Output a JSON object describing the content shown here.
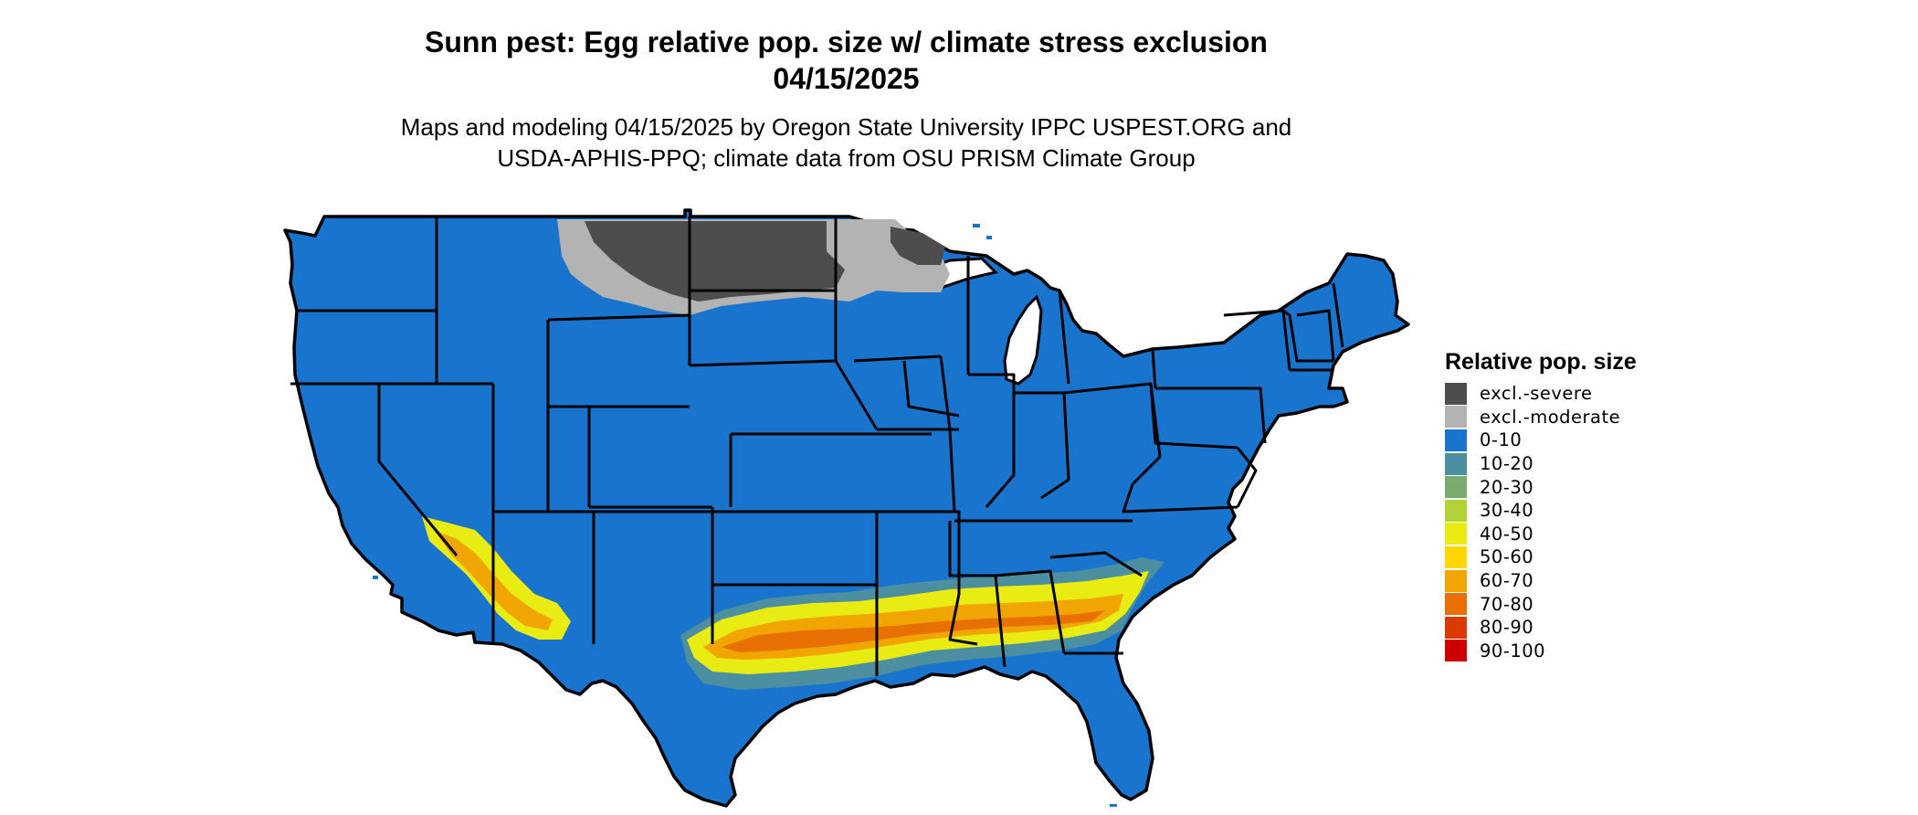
{
  "title": {
    "line1": "Sunn pest: Egg relative pop. size w/ climate stress exclusion",
    "line2": "04/15/2025"
  },
  "subtitle": {
    "line1": "Maps and modeling 04/15/2025 by Oregon State University IPPC USPEST.ORG and",
    "line2": "USDA-APHIS-PPQ; climate data from OSU PRISM Climate Group"
  },
  "legend": {
    "title": "Relative pop. size",
    "items": [
      {
        "label": "excl.-severe",
        "color": "#4d4d4d"
      },
      {
        "label": "excl.-moderate",
        "color": "#b3b3b3"
      },
      {
        "label": "0-10",
        "color": "#1874cd"
      },
      {
        "label": "10-20",
        "color": "#4b8fa0"
      },
      {
        "label": "20-30",
        "color": "#7aab6e"
      },
      {
        "label": "30-40",
        "color": "#b2d235"
      },
      {
        "label": "40-50",
        "color": "#e8ec12"
      },
      {
        "label": "50-60",
        "color": "#ffd700"
      },
      {
        "label": "60-70",
        "color": "#f0a500"
      },
      {
        "label": "70-80",
        "color": "#e87000"
      },
      {
        "label": "80-90",
        "color": "#d83a00"
      },
      {
        "label": "90-100",
        "color": "#cc0000"
      }
    ]
  },
  "map_colors": {
    "base": "#1874cd",
    "border": "#000000",
    "lake": "#ffffff"
  }
}
